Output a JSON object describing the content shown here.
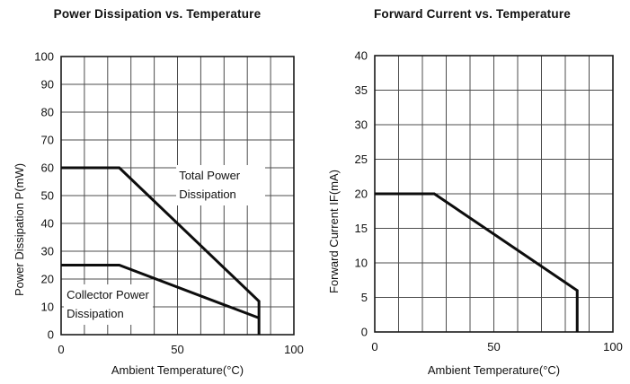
{
  "page": {
    "background": "#ffffff",
    "text_color": "#111111",
    "line_color": "#0d0d0d",
    "grid_color": "#4c4c4c"
  },
  "chart_data": [
    {
      "type": "line",
      "title": "Power Dissipation vs. Temperature",
      "xlabel": "Ambient Temperature(°C)",
      "ylabel": "Power Dissipation P(mW)",
      "xlim": [
        0,
        100
      ],
      "ylim": [
        0,
        100
      ],
      "xticks": [
        0,
        50,
        100
      ],
      "yticks": [
        0,
        10,
        20,
        30,
        40,
        50,
        60,
        70,
        80,
        90,
        100
      ],
      "x_grid_step": 10,
      "y_grid_step": 10,
      "grid": true,
      "legend": "none",
      "series": [
        {
          "name": "Total Power Dissipation",
          "points": [
            [
              0,
              60
            ],
            [
              25,
              60
            ],
            [
              85,
              12
            ],
            [
              85,
              0
            ]
          ]
        },
        {
          "name": "Collector Power Dissipation",
          "points": [
            [
              0,
              25
            ],
            [
              25,
              25
            ],
            [
              85,
              6
            ]
          ]
        }
      ],
      "annotations": [
        {
          "line1": "Total Power",
          "line2": "Dissipation",
          "x": 49.5,
          "y": 61
        },
        {
          "line1": "Collector Power",
          "line2": "Dissipation",
          "x": 1.2,
          "y": 18
        }
      ]
    },
    {
      "type": "line",
      "title": "Forward Current vs. Temperature",
      "xlabel": "Ambient Temperature(°C)",
      "ylabel": "Forward Current IF(mA)",
      "xlim": [
        0,
        100
      ],
      "ylim": [
        0,
        40
      ],
      "xticks": [
        0,
        50,
        100
      ],
      "yticks": [
        0,
        5,
        10,
        15,
        20,
        25,
        30,
        35,
        40
      ],
      "x_grid_step": 10,
      "y_grid_step": 5,
      "grid": true,
      "legend": "none",
      "series": [
        {
          "name": "Forward Current",
          "points": [
            [
              0,
              20
            ],
            [
              25,
              20
            ],
            [
              85,
              6
            ],
            [
              85,
              0
            ]
          ]
        }
      ],
      "annotations": []
    }
  ]
}
